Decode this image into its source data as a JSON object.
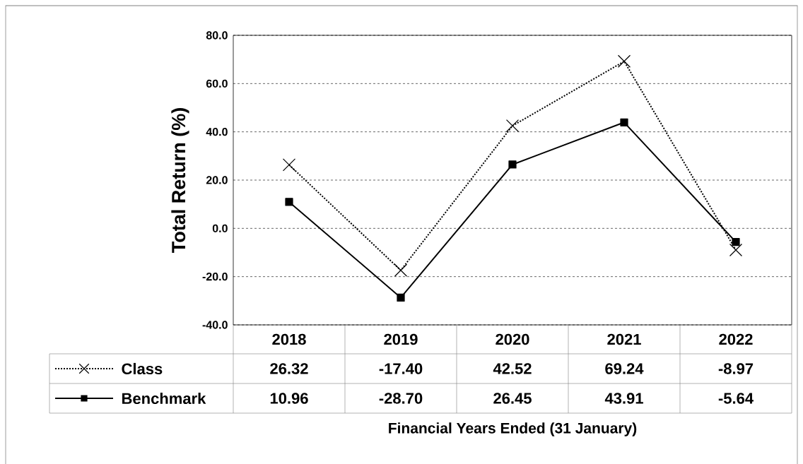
{
  "chart_data": {
    "type": "line",
    "annotations": [
      "Financial  Years Ended (31 January)"
    ],
    "ylabel": "Total Return (%)",
    "categories": [
      "2018",
      "2019",
      "2020",
      "2021",
      "2022"
    ],
    "series": [
      {
        "name": "Class",
        "color": "#000000",
        "marker": "cross",
        "line_style": "dotted",
        "values": [
          26.32,
          -17.4,
          42.52,
          69.24,
          -8.97
        ],
        "value_labels": [
          "26.32",
          "-17.40",
          "42.52",
          "69.24",
          "-8.97"
        ]
      },
      {
        "name": "Benchmark",
        "color": "#000000",
        "marker": "square",
        "line_style": "solid",
        "values": [
          10.96,
          -28.7,
          26.45,
          43.91,
          -5.64
        ],
        "value_labels": [
          "10.96",
          "-28.70",
          "26.45",
          "43.91",
          "-5.64"
        ]
      }
    ],
    "ylim": [
      -40,
      80
    ],
    "yticks": [
      {
        "value": -40,
        "label": "-40.0"
      },
      {
        "value": -20,
        "label": "-20.0"
      },
      {
        "value": 0,
        "label": "0.0"
      },
      {
        "value": 20,
        "label": "20.0"
      },
      {
        "value": 40,
        "label": "40.0"
      },
      {
        "value": 60,
        "label": "60.0"
      },
      {
        "value": 80,
        "label": "80.0"
      }
    ],
    "grid": "y",
    "legend": "bottom"
  }
}
